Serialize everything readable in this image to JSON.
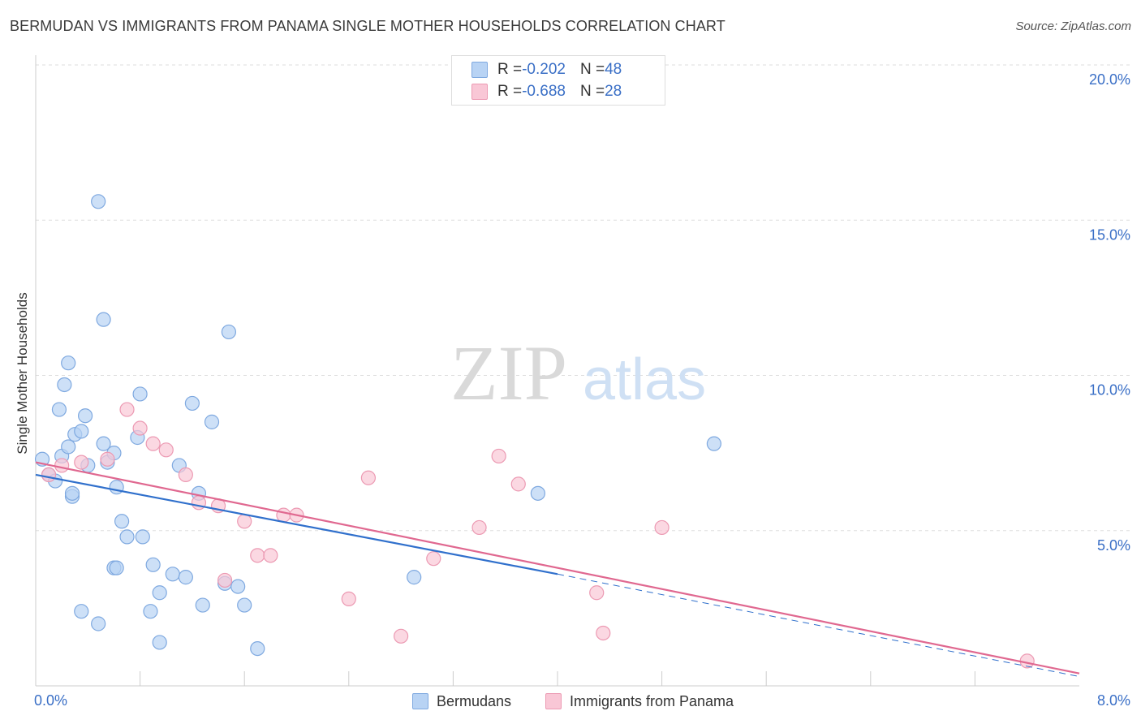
{
  "header": {
    "title": "BERMUDAN VS IMMIGRANTS FROM PANAMA SINGLE MOTHER HOUSEHOLDS CORRELATION CHART",
    "source": "Source: ZipAtlas.com"
  },
  "watermark": {
    "part1": "ZIP",
    "part2": "atlas"
  },
  "colors": {
    "series1_fill": "#b8d3f4",
    "series1_stroke": "#7fa9e0",
    "series1_line": "#3070cc",
    "series2_fill": "#f9c7d6",
    "series2_stroke": "#ec9ab3",
    "series2_line": "#e06890",
    "tick_label": "#3a6fc6",
    "grid": "#dddddd"
  },
  "legend_top": [
    {
      "r_label": "R = ",
      "r_value": "-0.202",
      "n_label": "N = ",
      "n_value": "48"
    },
    {
      "r_label": "R = ",
      "r_value": "-0.688",
      "n_label": "N = ",
      "n_value": "28"
    }
  ],
  "chart_data": {
    "type": "scatter",
    "title": "BERMUDAN VS IMMIGRANTS FROM PANAMA SINGLE MOTHER HOUSEHOLDS CORRELATION CHART",
    "xlabel": "",
    "ylabel": "Single Mother Households",
    "xlim": [
      0,
      8
    ],
    "ylim": [
      0,
      20
    ],
    "x_tick_labels": [
      {
        "value": 0,
        "label": "0.0%"
      },
      {
        "value": 8,
        "label": "8.0%"
      }
    ],
    "y_tick_labels": [
      {
        "value": 5,
        "label": "5.0%"
      },
      {
        "value": 10,
        "label": "10.0%"
      },
      {
        "value": 15,
        "label": "15.0%"
      },
      {
        "value": 20,
        "label": "20.0%"
      }
    ],
    "x_minor_ticks": [
      0.8,
      1.6,
      2.4,
      3.2,
      4.0,
      4.8,
      5.6,
      6.4,
      7.2
    ],
    "grid": true,
    "legend_position": "top-center",
    "series": [
      {
        "name": "Bermudans",
        "points": [
          [
            0.05,
            7.3
          ],
          [
            0.1,
            6.8
          ],
          [
            0.15,
            6.6
          ],
          [
            0.2,
            7.4
          ],
          [
            0.25,
            7.7
          ],
          [
            0.3,
            8.1
          ],
          [
            0.35,
            8.2
          ],
          [
            0.4,
            7.1
          ],
          [
            0.28,
            6.1
          ],
          [
            0.18,
            8.9
          ],
          [
            0.22,
            9.7
          ],
          [
            0.25,
            10.4
          ],
          [
            0.38,
            8.7
          ],
          [
            0.52,
            11.8
          ],
          [
            0.48,
            15.6
          ],
          [
            0.52,
            7.8
          ],
          [
            0.55,
            7.2
          ],
          [
            0.6,
            7.5
          ],
          [
            0.62,
            6.4
          ],
          [
            0.66,
            5.3
          ],
          [
            0.7,
            4.8
          ],
          [
            0.82,
            4.8
          ],
          [
            0.78,
            8.0
          ],
          [
            0.8,
            9.4
          ],
          [
            0.9,
            3.9
          ],
          [
            0.95,
            3.0
          ],
          [
            0.88,
            2.4
          ],
          [
            0.95,
            1.4
          ],
          [
            1.05,
            3.6
          ],
          [
            1.15,
            3.5
          ],
          [
            1.1,
            7.1
          ],
          [
            1.2,
            9.1
          ],
          [
            1.25,
            6.2
          ],
          [
            1.28,
            2.6
          ],
          [
            1.35,
            8.5
          ],
          [
            1.45,
            3.3
          ],
          [
            1.55,
            3.2
          ],
          [
            1.6,
            2.6
          ],
          [
            1.7,
            1.2
          ],
          [
            1.48,
            11.4
          ],
          [
            0.35,
            2.4
          ],
          [
            0.48,
            2.0
          ],
          [
            0.6,
            3.8
          ],
          [
            0.62,
            3.8
          ],
          [
            0.28,
            6.2
          ],
          [
            2.9,
            3.5
          ],
          [
            3.85,
            6.2
          ],
          [
            5.2,
            7.8
          ]
        ],
        "trend": {
          "x0": 0.0,
          "y0": 6.8,
          "x1": 4.0,
          "y1": 3.6,
          "dashed_to_x": 8.0,
          "dashed_to_y": 0.3
        }
      },
      {
        "name": "Immigrants from Panama",
        "points": [
          [
            0.1,
            6.8
          ],
          [
            0.2,
            7.1
          ],
          [
            0.35,
            7.2
          ],
          [
            0.55,
            7.3
          ],
          [
            0.7,
            8.9
          ],
          [
            0.8,
            8.3
          ],
          [
            0.9,
            7.8
          ],
          [
            1.0,
            7.6
          ],
          [
            1.15,
            6.8
          ],
          [
            1.25,
            5.9
          ],
          [
            1.4,
            5.8
          ],
          [
            1.6,
            5.3
          ],
          [
            1.7,
            4.2
          ],
          [
            1.8,
            4.2
          ],
          [
            1.9,
            5.5
          ],
          [
            2.0,
            5.5
          ],
          [
            1.45,
            3.4
          ],
          [
            2.4,
            2.8
          ],
          [
            2.55,
            6.7
          ],
          [
            2.8,
            1.6
          ],
          [
            3.05,
            4.1
          ],
          [
            3.4,
            5.1
          ],
          [
            3.55,
            7.4
          ],
          [
            3.7,
            6.5
          ],
          [
            4.3,
            3.0
          ],
          [
            4.35,
            1.7
          ],
          [
            4.8,
            5.1
          ],
          [
            7.6,
            0.8
          ]
        ],
        "trend": {
          "x0": 0.0,
          "y0": 7.2,
          "x1": 8.0,
          "y1": 0.4
        }
      }
    ]
  }
}
